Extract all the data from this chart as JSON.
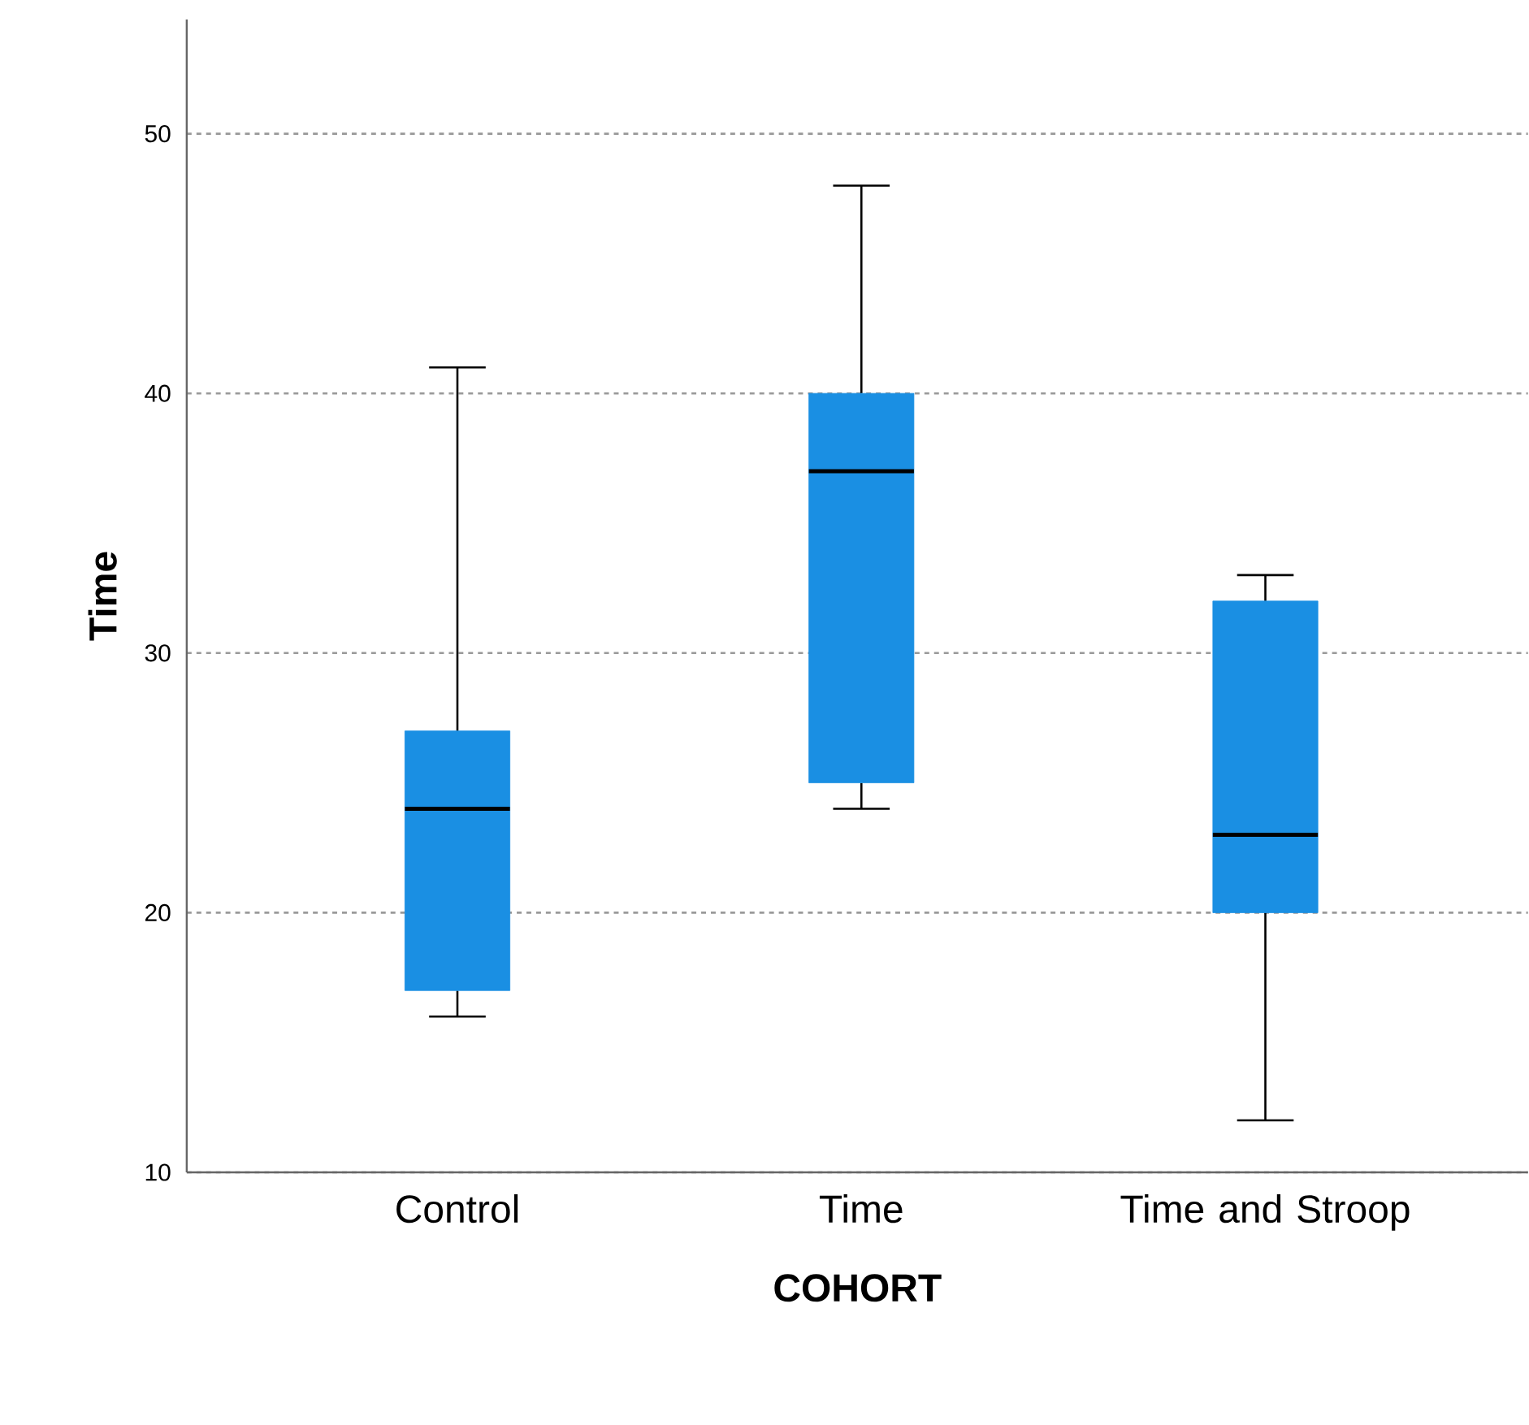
{
  "chart_data": {
    "type": "box",
    "xlabel": "COHORT",
    "ylabel": "Time",
    "categories": [
      "Control",
      "Time",
      "Time and Stroop"
    ],
    "boxes": [
      {
        "low": 16,
        "q1": 17,
        "median": 24,
        "q3": 27,
        "high": 41
      },
      {
        "low": 24,
        "q1": 25,
        "median": 37,
        "q3": 40,
        "high": 48
      },
      {
        "low": 12,
        "q1": 20,
        "median": 23,
        "q3": 32,
        "high": 33
      }
    ],
    "color": "#1a8fe3",
    "ylim": [
      10,
      54.4
    ],
    "yticks": [
      10,
      20,
      30,
      40,
      50
    ],
    "grid": "y"
  }
}
